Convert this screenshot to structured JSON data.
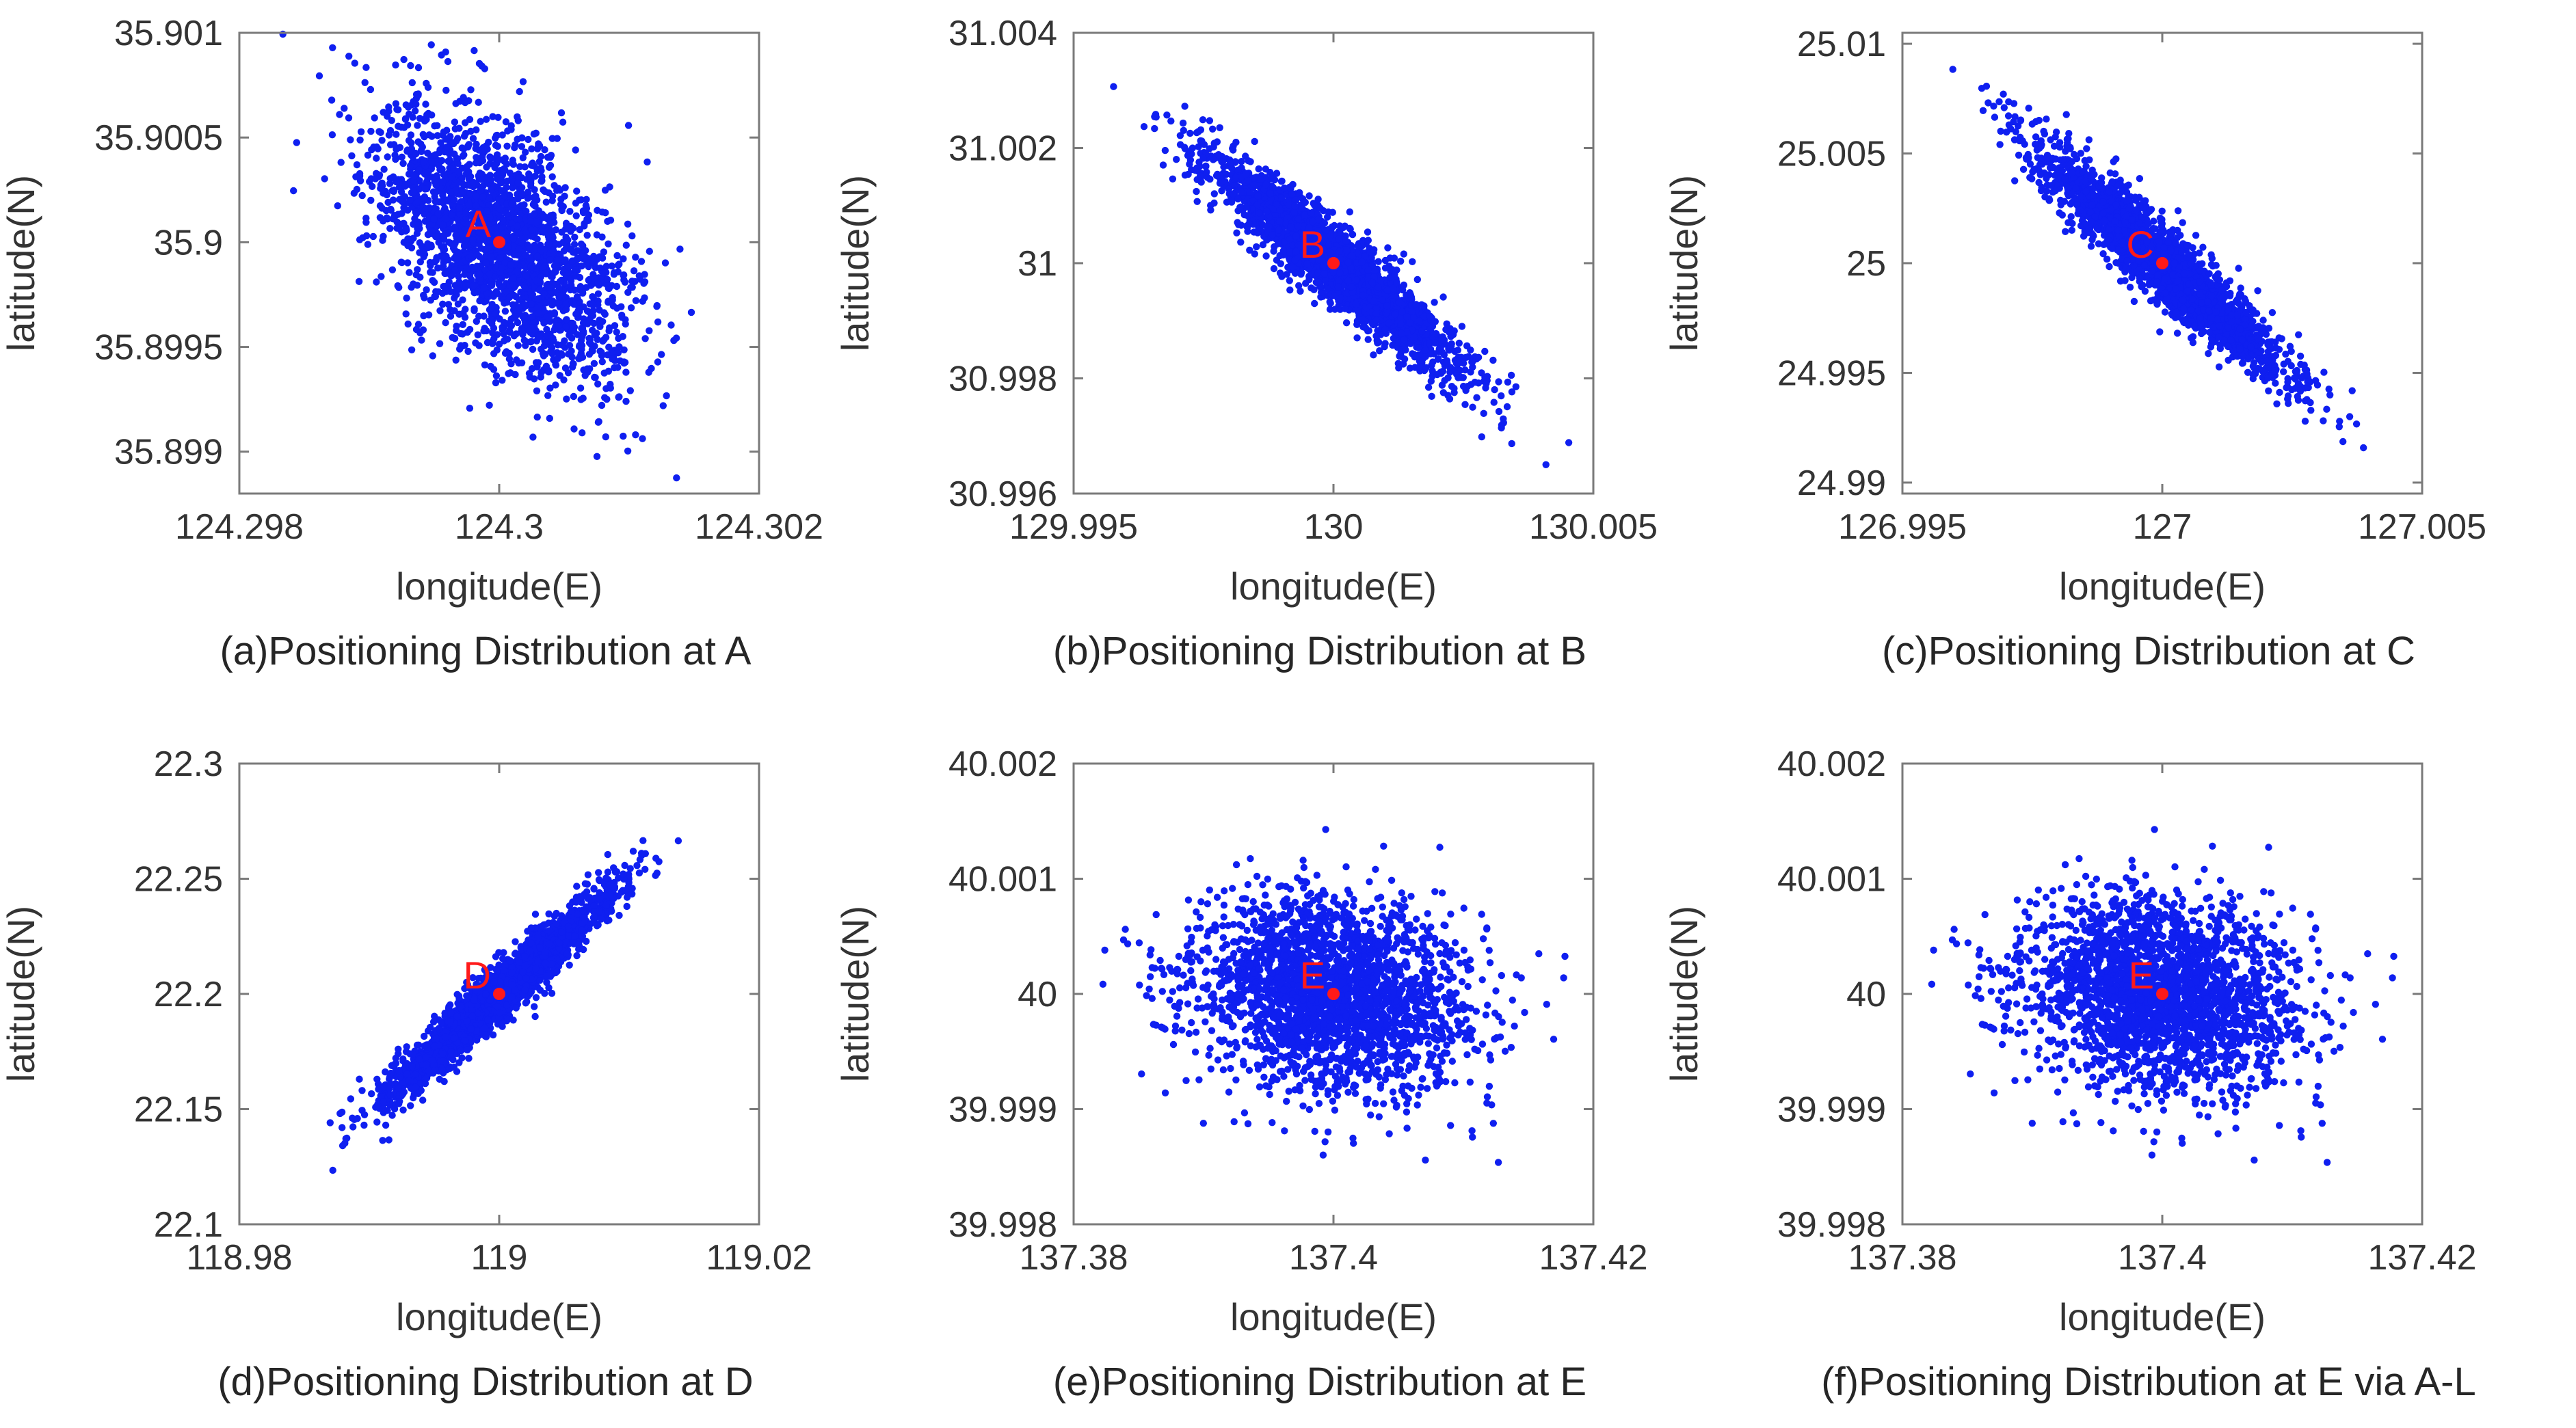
{
  "colors": {
    "points": "#0f1ff0",
    "marker": "#ff1a1a",
    "axes": "#7a7a7a",
    "text": "#333333"
  },
  "chart_data": [
    {
      "type": "scatter",
      "caption": "(a)Positioning Distribution at A",
      "xlabel": "longitude(E)",
      "ylabel": "latitude(N)",
      "xlim": [
        124.298,
        124.302
      ],
      "ylim": [
        35.8988,
        35.901
      ],
      "xticks": [
        "124.298",
        "124.3",
        "124.302"
      ],
      "yticks": [
        "35.899",
        "35.8995",
        "35.9",
        "35.9005",
        "35.901"
      ],
      "center": {
        "label": "A",
        "x": 124.3,
        "y": 35.9
      },
      "distribution": {
        "n": 2400,
        "sx": 0.00048,
        "sy": 0.00032,
        "rho": -0.55,
        "seed": 11
      }
    },
    {
      "type": "scatter",
      "caption": "(b)Positioning Distribution at B",
      "xlabel": "longitude(E)",
      "ylabel": "latitude(N)",
      "xlim": [
        129.995,
        130.005
      ],
      "ylim": [
        30.996,
        31.004
      ],
      "xticks": [
        "129.995",
        "130",
        "130.005"
      ],
      "yticks": [
        "30.996",
        "30.998",
        "31",
        "31.002",
        "31.004"
      ],
      "center": {
        "label": "B",
        "x": 130,
        "y": 31
      },
      "distribution": {
        "n": 2400,
        "sx": 0.0012,
        "sy": 0.00093,
        "rho": -0.93,
        "seed": 23
      }
    },
    {
      "type": "scatter",
      "caption": "(c)Positioning Distribution at C",
      "xlabel": "longitude(E)",
      "ylabel": "latitude(N)",
      "xlim": [
        126.995,
        127.005
      ],
      "ylim": [
        24.9895,
        25.0105
      ],
      "xticks": [
        "126.995",
        "127",
        "127.005"
      ],
      "yticks": [
        "24.99",
        "24.995",
        "25",
        "25.005",
        "25.01"
      ],
      "center": {
        "label": "C",
        "x": 127,
        "y": 25
      },
      "distribution": {
        "n": 2400,
        "sx": 0.0012,
        "sy": 0.0026,
        "rho": -0.94,
        "seed": 37
      }
    },
    {
      "type": "scatter",
      "caption": "(d)Positioning Distribution at D",
      "xlabel": "longitude(E)",
      "ylabel": "latitude(N)",
      "xlim": [
        118.98,
        119.02
      ],
      "ylim": [
        22.1,
        22.3
      ],
      "xticks": [
        "118.98",
        "119",
        "119.02"
      ],
      "yticks": [
        "22.1",
        "22.15",
        "22.2",
        "22.25",
        "22.3"
      ],
      "center": {
        "label": "D",
        "x": 119,
        "y": 22.2
      },
      "distribution": {
        "n": 2400,
        "sx": 0.0042,
        "sy": 0.022,
        "rho": 0.96,
        "seed": 41
      }
    },
    {
      "type": "scatter",
      "caption": "(e)Positioning Distribution at E",
      "xlabel": "longitude(E)",
      "ylabel": "latitude(N)",
      "xlim": [
        137.38,
        137.42
      ],
      "ylim": [
        39.998,
        40.002
      ],
      "xticks": [
        "137.38",
        "137.4",
        "137.42"
      ],
      "yticks": [
        "39.998",
        "39.999",
        "40",
        "40.001",
        "40.002"
      ],
      "center": {
        "label": "E",
        "x": 137.4,
        "y": 40
      },
      "distribution": {
        "n": 2400,
        "sx": 0.0052,
        "sy": 0.00042,
        "rho": -0.18,
        "seed": 53
      }
    },
    {
      "type": "scatter",
      "caption": "(f)Positioning Distribution at E via A-L",
      "xlabel": "longitude(E)",
      "ylabel": "latitude(N)",
      "xlim": [
        137.38,
        137.42
      ],
      "ylim": [
        39.998,
        40.002
      ],
      "xticks": [
        "137.38",
        "137.4",
        "137.42"
      ],
      "yticks": [
        "39.998",
        "39.999",
        "40",
        "40.001",
        "40.002"
      ],
      "center": {
        "label": "E",
        "x": 137.4,
        "y": 40
      },
      "distribution": {
        "n": 2400,
        "sx": 0.0052,
        "sy": 0.00042,
        "rho": -0.18,
        "seed": 53
      }
    }
  ]
}
